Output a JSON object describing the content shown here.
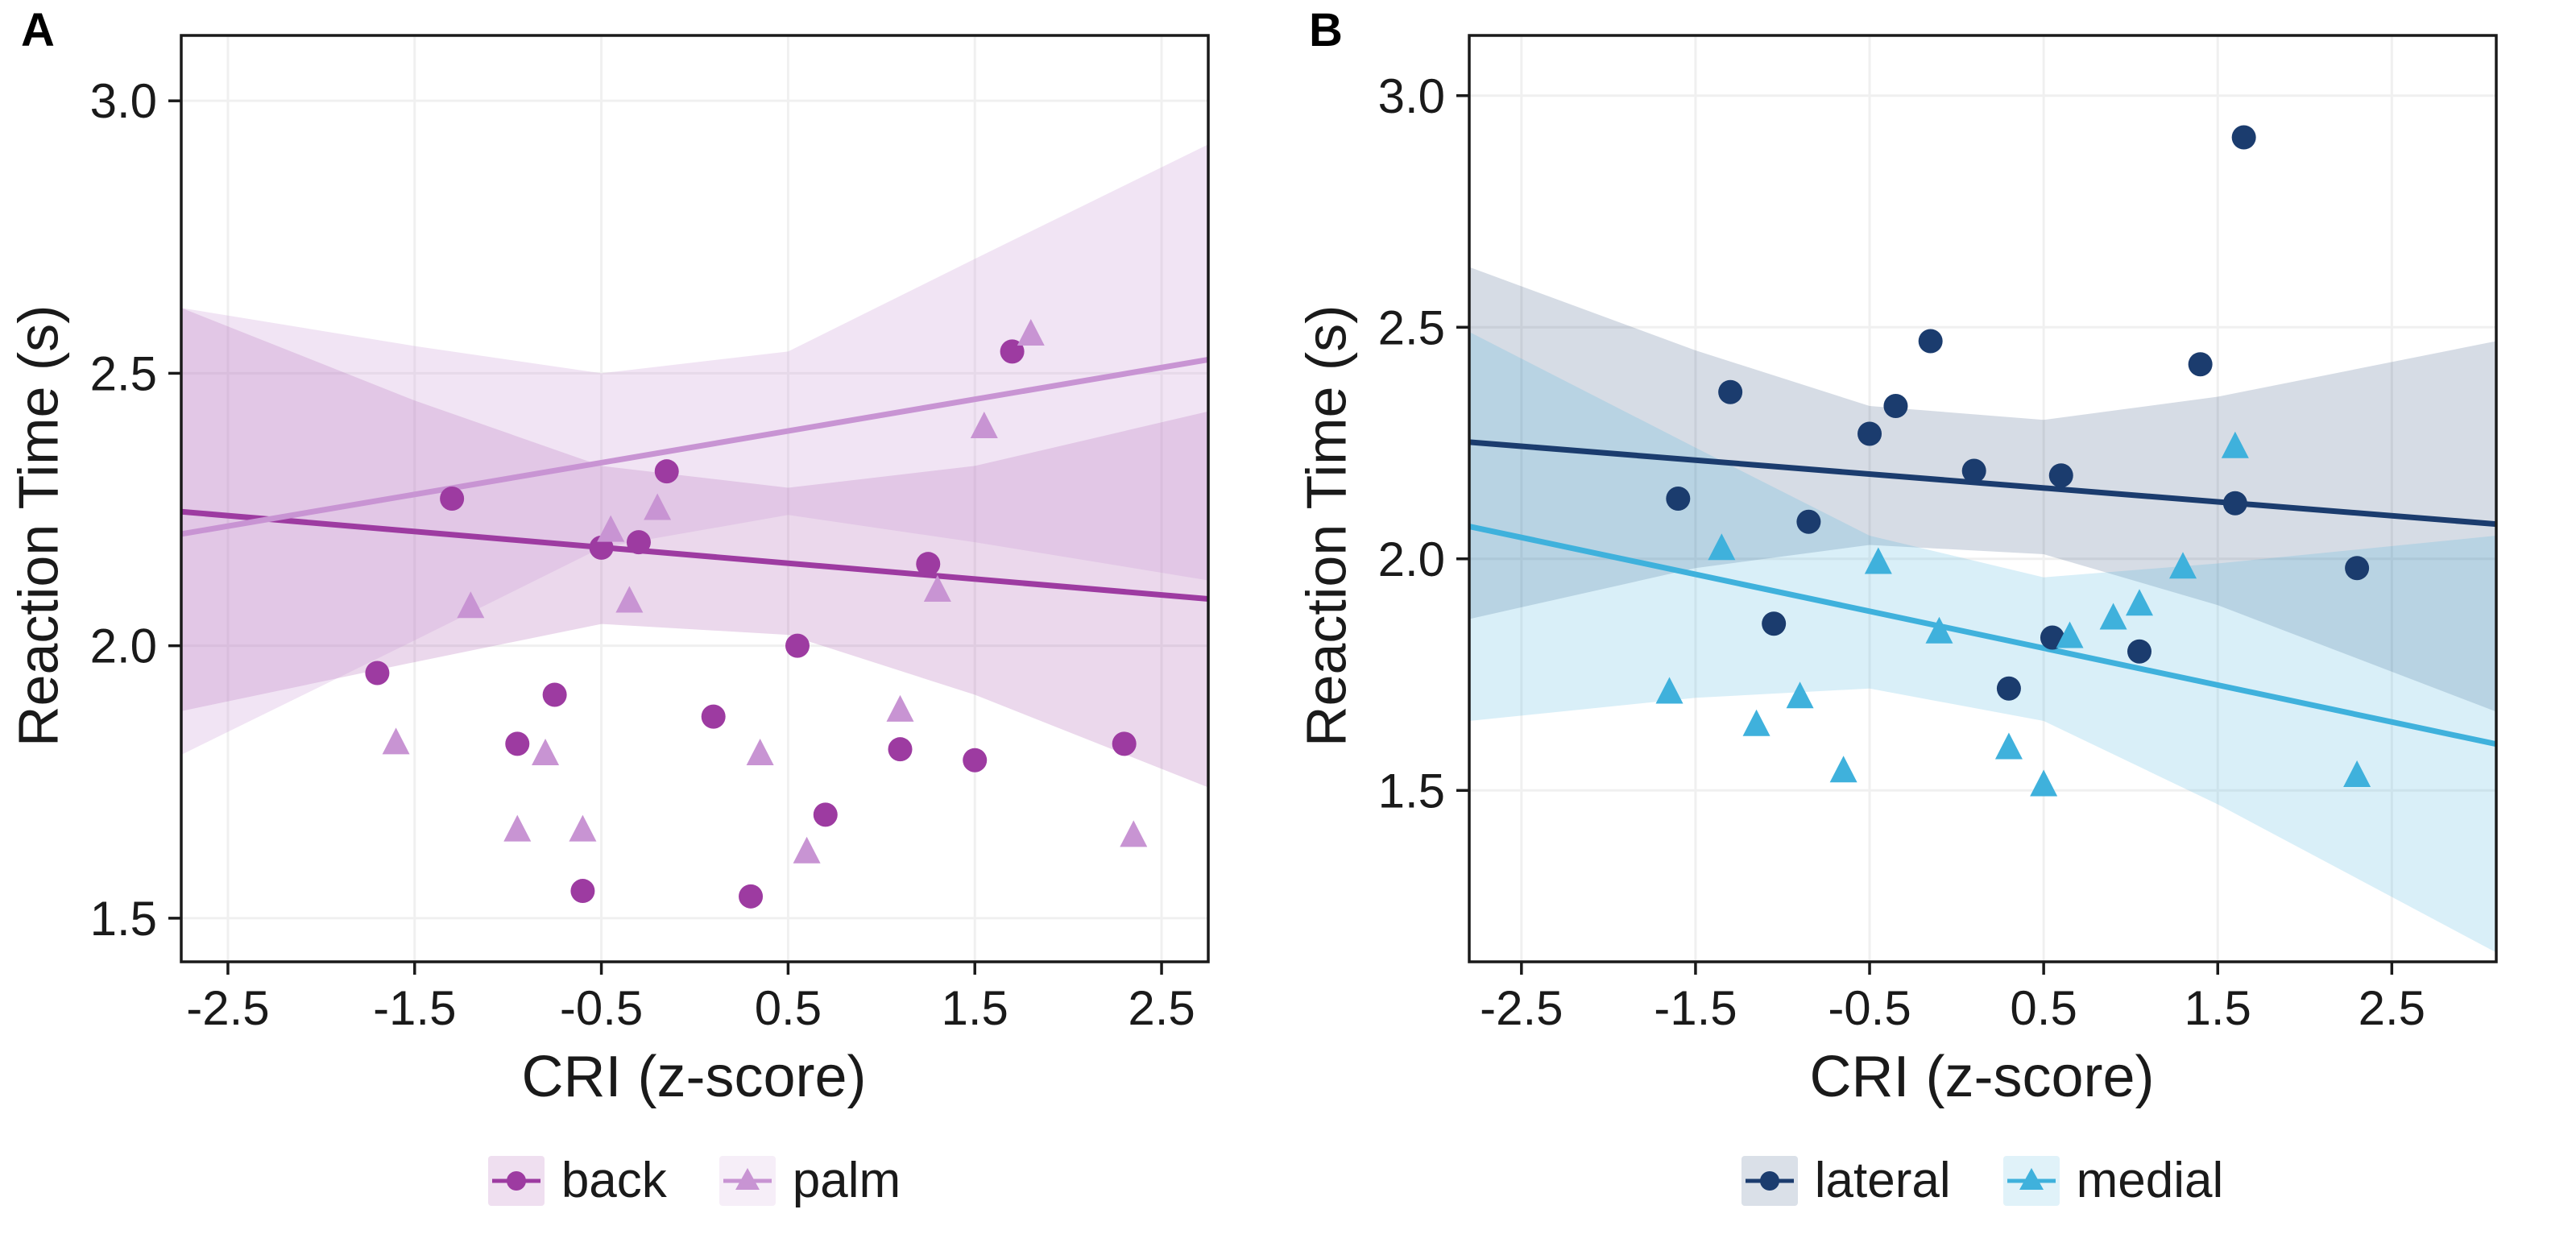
{
  "figure": {
    "background": "#ffffff",
    "text_color": "#1a1a1a",
    "border_color": "#1a1a1a",
    "gridline_color": "#f0f0f0"
  },
  "chart_data": [
    {
      "panel_label": "A",
      "type": "scatter",
      "title": "",
      "xlabel": "CRI (z-score)",
      "ylabel": "Reaction Time (s)",
      "xlim": [
        -2.75,
        2.75
      ],
      "ylim": [
        1.42,
        3.12
      ],
      "xticks": [
        -2.5,
        -1.5,
        -0.5,
        0.5,
        1.5,
        2.5
      ],
      "xtick_labels": [
        "-2.5",
        "-1.5",
        "-0.5",
        "0.5",
        "1.5",
        "2.5"
      ],
      "yticks": [
        1.5,
        2.0,
        2.5,
        3.0
      ],
      "ytick_labels": [
        "1.5",
        "2.0",
        "2.5",
        "3.0"
      ],
      "grid": true,
      "legend_position": "bottom",
      "series": [
        {
          "name": "back",
          "marker": "circle",
          "color": "#9D3BA1",
          "band_opacity": 0.2,
          "points": [
            [
              -1.7,
              1.95
            ],
            [
              -1.3,
              2.27
            ],
            [
              -0.95,
              1.82
            ],
            [
              -0.75,
              1.91
            ],
            [
              -0.6,
              1.55
            ],
            [
              -0.5,
              2.18
            ],
            [
              -0.3,
              2.19
            ],
            [
              -0.15,
              2.32
            ],
            [
              0.1,
              1.87
            ],
            [
              0.3,
              1.54
            ],
            [
              0.55,
              2.0
            ],
            [
              0.7,
              1.69
            ],
            [
              1.1,
              1.81
            ],
            [
              1.25,
              2.15
            ],
            [
              1.5,
              1.79
            ],
            [
              1.7,
              2.54
            ],
            [
              2.3,
              1.82
            ]
          ],
          "regression": {
            "x": [
              -2.75,
              2.75
            ],
            "y": [
              2.246,
              2.086
            ]
          },
          "ci": {
            "x": [
              -2.75,
              -1.5,
              -0.5,
              0.5,
              1.5,
              2.75
            ],
            "upper": [
              2.62,
              2.45,
              2.33,
              2.29,
              2.33,
              2.43
            ],
            "lower": [
              1.88,
              1.97,
              2.04,
              2.02,
              1.91,
              1.74
            ]
          }
        },
        {
          "name": "palm",
          "marker": "triangle",
          "color": "#C894D3",
          "band_opacity": 0.25,
          "points": [
            [
              -1.6,
              1.82
            ],
            [
              -1.2,
              2.07
            ],
            [
              -0.95,
              1.66
            ],
            [
              -0.8,
              1.8
            ],
            [
              -0.6,
              1.66
            ],
            [
              -0.45,
              2.21
            ],
            [
              -0.35,
              2.08
            ],
            [
              -0.2,
              2.25
            ],
            [
              0.35,
              1.8
            ],
            [
              0.6,
              1.62
            ],
            [
              1.1,
              1.88
            ],
            [
              1.3,
              2.1
            ],
            [
              1.55,
              2.4
            ],
            [
              1.8,
              2.57
            ],
            [
              2.35,
              1.65
            ]
          ],
          "regression": {
            "x": [
              -2.75,
              2.75
            ],
            "y": [
              2.205,
              2.525
            ]
          },
          "ci": {
            "x": [
              -2.75,
              -1.5,
              -0.5,
              0.5,
              1.5,
              2.75
            ],
            "upper": [
              2.62,
              2.55,
              2.5,
              2.54,
              2.71,
              2.92
            ],
            "lower": [
              1.8,
              2.01,
              2.18,
              2.24,
              2.19,
              2.12
            ]
          }
        }
      ]
    },
    {
      "panel_label": "B",
      "type": "scatter",
      "title": "",
      "xlabel": "CRI (z-score)",
      "ylabel": "Reaction Time (s)",
      "xlim": [
        -2.8,
        3.1
      ],
      "ylim": [
        1.13,
        3.13
      ],
      "xticks": [
        -2.5,
        -1.5,
        -0.5,
        0.5,
        1.5,
        2.5
      ],
      "xtick_labels": [
        "-2.5",
        "-1.5",
        "-0.5",
        "0.5",
        "1.5",
        "2.5"
      ],
      "yticks": [
        1.5,
        2.0,
        2.5,
        3.0
      ],
      "ytick_labels": [
        "1.5",
        "2.0",
        "2.5",
        "3.0"
      ],
      "grid": true,
      "legend_position": "bottom",
      "series": [
        {
          "name": "lateral",
          "marker": "circle",
          "color": "#1B3C6E",
          "band_opacity": 0.18,
          "points": [
            [
              -1.6,
              2.13
            ],
            [
              -1.3,
              2.36
            ],
            [
              -1.05,
              1.86
            ],
            [
              -0.85,
              2.08
            ],
            [
              -0.5,
              2.27
            ],
            [
              -0.35,
              2.33
            ],
            [
              -0.15,
              2.47
            ],
            [
              0.1,
              2.19
            ],
            [
              0.3,
              1.72
            ],
            [
              0.55,
              1.83
            ],
            [
              0.6,
              2.18
            ],
            [
              1.05,
              1.8
            ],
            [
              1.4,
              2.42
            ],
            [
              1.6,
              2.12
            ],
            [
              1.65,
              2.91
            ],
            [
              2.3,
              1.98
            ]
          ],
          "regression": {
            "x": [
              -2.8,
              3.1
            ],
            "y": [
              2.252,
              2.075
            ]
          },
          "ci": {
            "x": [
              -2.8,
              -1.5,
              -0.5,
              0.5,
              1.5,
              3.1
            ],
            "upper": [
              2.63,
              2.45,
              2.33,
              2.3,
              2.35,
              2.47
            ],
            "lower": [
              1.87,
              1.98,
              2.03,
              2.01,
              1.9,
              1.67
            ]
          }
        },
        {
          "name": "medial",
          "marker": "triangle",
          "color": "#3FB1DC",
          "band_opacity": 0.2,
          "points": [
            [
              -1.65,
              1.71
            ],
            [
              -1.35,
              2.02
            ],
            [
              -1.15,
              1.64
            ],
            [
              -0.9,
              1.7
            ],
            [
              -0.65,
              1.54
            ],
            [
              -0.45,
              1.99
            ],
            [
              -0.1,
              1.84
            ],
            [
              0.3,
              1.59
            ],
            [
              0.5,
              1.51
            ],
            [
              0.65,
              1.83
            ],
            [
              0.9,
              1.87
            ],
            [
              1.05,
              1.9
            ],
            [
              1.3,
              1.98
            ],
            [
              1.6,
              2.24
            ],
            [
              2.3,
              1.53
            ]
          ],
          "regression": {
            "x": [
              -2.8,
              3.1
            ],
            "y": [
              2.07,
              1.6
            ]
          },
          "ci": {
            "x": [
              -2.8,
              -1.5,
              -0.5,
              0.5,
              1.5,
              3.1
            ],
            "upper": [
              2.49,
              2.24,
              2.05,
              1.96,
              1.99,
              2.05
            ],
            "lower": [
              1.65,
              1.7,
              1.72,
              1.65,
              1.47,
              1.15
            ]
          }
        }
      ]
    }
  ]
}
